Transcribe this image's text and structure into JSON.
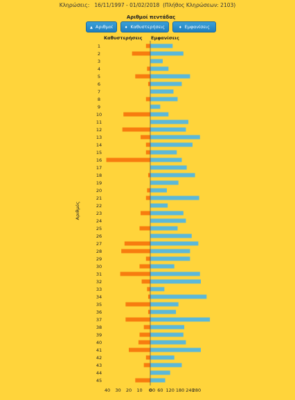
{
  "header": {
    "label": "Κληρώσεις:",
    "period": "16/11/1997 - 01/02/2018",
    "draws_count": "(Πλήθος Κληρώσεων: 2103)"
  },
  "buttons": {
    "numbers": "Αριθμοί",
    "delays": "Καθυστερήσεις",
    "appearances": "Εμφανίσεις"
  },
  "colors": {
    "delays": "#f77c0f",
    "appearances": "#5bb8d9",
    "background": "#ffd43b",
    "button": "#1f7fbf"
  },
  "chart_data": {
    "type": "bar",
    "orientation": "horizontal-diverging",
    "title": "Αριθμοί πεντάδας",
    "ylabel": "Αριθμός",
    "categories": [
      "1",
      "2",
      "3",
      "4",
      "5",
      "6",
      "7",
      "8",
      "9",
      "10",
      "11",
      "12",
      "13",
      "14",
      "15",
      "16",
      "17",
      "18",
      "19",
      "20",
      "21",
      "22",
      "23",
      "24",
      "25",
      "26",
      "27",
      "28",
      "29",
      "30",
      "31",
      "32",
      "33",
      "34",
      "35",
      "36",
      "37",
      "38",
      "39",
      "40",
      "41",
      "42",
      "43",
      "44",
      "45"
    ],
    "series": [
      {
        "name": "Καθυστερήσεις",
        "side": "left",
        "xlim": [
          40,
          0
        ],
        "ticks": [
          40,
          30,
          20,
          10,
          0
        ],
        "values": [
          4,
          17,
          0,
          3,
          14,
          2,
          0,
          4,
          0,
          25,
          0,
          26,
          9,
          4,
          4,
          41,
          0,
          2,
          0,
          3,
          4,
          0,
          9,
          0,
          10,
          0,
          24,
          27,
          4,
          10,
          28,
          8,
          3,
          2,
          23,
          2,
          23,
          6,
          10,
          11,
          20,
          4,
          6,
          0,
          14
        ]
      },
      {
        "name": "Εμφανίσεις",
        "side": "right",
        "xlim": [
          0,
          280
        ],
        "ticks": [
          0,
          60,
          120,
          180,
          240,
          280
        ],
        "tick_labels": [
          "00",
          "60",
          "120",
          "180",
          "240",
          "280"
        ],
        "values": [
          135,
          200,
          75,
          110,
          240,
          190,
          140,
          165,
          60,
          110,
          230,
          215,
          300,
          255,
          160,
          190,
          220,
          270,
          170,
          100,
          295,
          105,
          200,
          215,
          165,
          250,
          290,
          240,
          240,
          145,
          300,
          305,
          85,
          340,
          170,
          155,
          360,
          205,
          200,
          215,
          305,
          145,
          190,
          120,
          90
        ]
      }
    ]
  }
}
